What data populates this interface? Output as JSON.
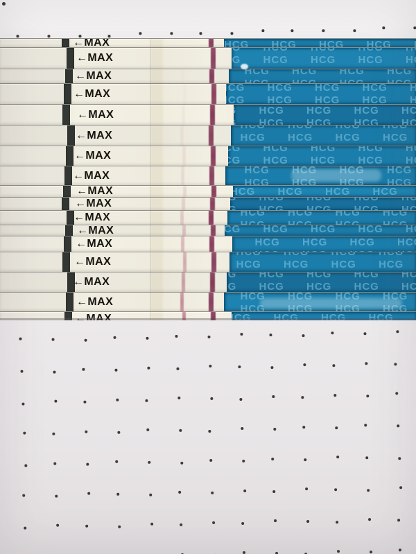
{
  "scene": {
    "description": "Photo of stacked HCG pregnancy test strips on dot-grid paper",
    "strip_label": "←MAX",
    "pattern_text": "HCG",
    "strip_count": 18,
    "rows": [
      {
        "label": "←MAX",
        "test_line": 0.0,
        "control_line": 0.92
      },
      {
        "label": "←MAX",
        "test_line": 0.0,
        "control_line": 0.9
      },
      {
        "label": "←MAX",
        "test_line": 0.02,
        "control_line": 0.93
      },
      {
        "label": "←MAX",
        "test_line": 0.03,
        "control_line": 0.9
      },
      {
        "label": "←MAX",
        "test_line": 0.05,
        "control_line": 0.94
      },
      {
        "label": "←MAX",
        "test_line": 0.07,
        "control_line": 0.9
      },
      {
        "label": "←MAX",
        "test_line": 0.1,
        "control_line": 0.92
      },
      {
        "label": "←MAX",
        "test_line": 0.13,
        "control_line": 0.9
      },
      {
        "label": "←MAX",
        "test_line": 0.16,
        "control_line": 0.93
      },
      {
        "label": "←MAX",
        "test_line": 0.2,
        "control_line": 0.91
      },
      {
        "label": "←MAX",
        "test_line": 0.25,
        "control_line": 0.94
      },
      {
        "label": "←MAX",
        "test_line": 0.3,
        "control_line": 0.9
      },
      {
        "label": "←MAX",
        "test_line": 0.38,
        "control_line": 0.92
      },
      {
        "label": "←MAX",
        "test_line": 0.46,
        "control_line": 0.9
      },
      {
        "label": "←MAX",
        "test_line": 0.55,
        "control_line": 0.93
      },
      {
        "label": "←MAX",
        "test_line": 0.65,
        "control_line": 0.91
      },
      {
        "label": "←MAX",
        "test_line": 0.75,
        "control_line": 0.94
      },
      {
        "label": "←MAX",
        "test_line": 0.85,
        "control_line": 0.95
      }
    ],
    "colors": {
      "tape_blue": "#1b7dab",
      "tape_text_blue": "#7dc0dc",
      "control_line": "#7c3152",
      "test_line": "#ad5f77",
      "marker_black": "#333733",
      "strip_cream": "#e9e6dc",
      "strip_membrane": "#f0ede0",
      "paper_top": "#f6f4f5",
      "paper_bottom": "#e8e5e7",
      "grid_dot": "#3e3a38"
    },
    "paper": {
      "pattern": "dot-grid"
    }
  }
}
